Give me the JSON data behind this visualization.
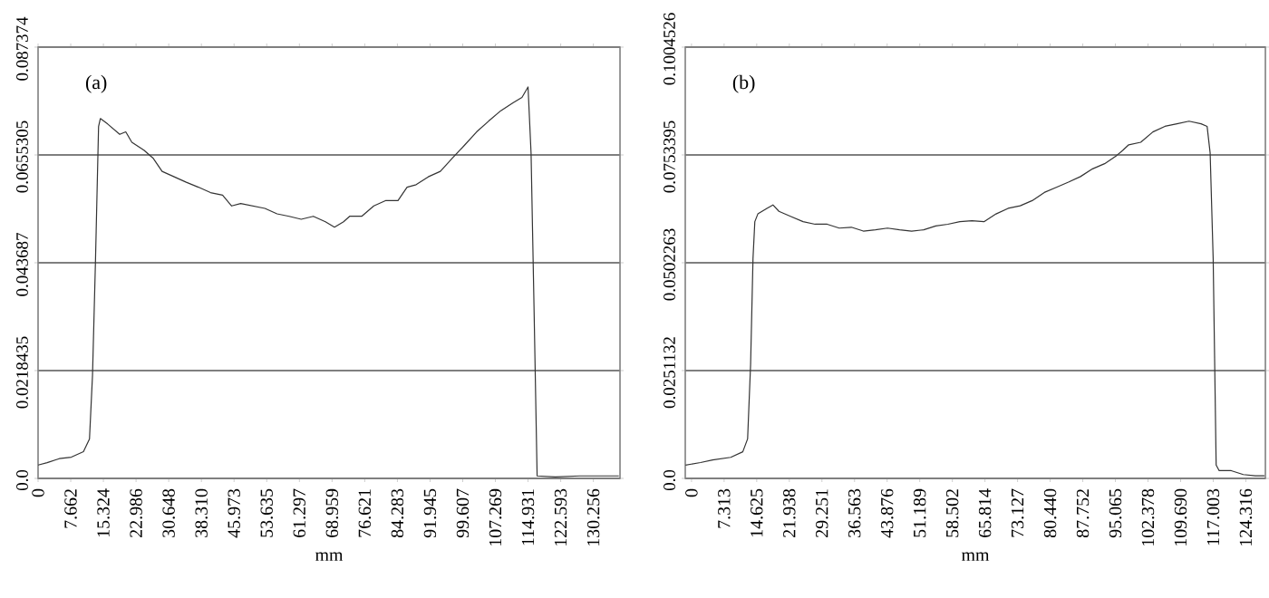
{
  "chart_data": [
    {
      "type": "line",
      "annotations": [
        "(a)"
      ],
      "xlabel": "mm",
      "grid": "y",
      "color": "#333333",
      "xlim": [
        0,
        136.5
      ],
      "ylim": [
        0,
        0.087374
      ],
      "xticks": [
        0,
        7.662,
        15.324,
        22.986,
        30.648,
        {
          "value": 38.31,
          "label": "38.310"
        },
        45.973,
        53.635,
        61.297,
        68.959,
        76.621,
        84.283,
        91.945,
        99.607,
        107.269,
        114.931,
        122.593,
        130.256
      ],
      "yticks": [
        {
          "value": 0,
          "label": "0.0"
        },
        0.0218435,
        0.043687,
        0.0655305,
        0.087374
      ],
      "x": [
        0,
        2.13,
        4.97,
        7.8,
        10.64,
        12.06,
        12.77,
        13.48,
        14.19,
        14.61,
        16.32,
        19.15,
        20.57,
        21.99,
        24.83,
        26.96,
        29.09,
        31.92,
        34.76,
        37.6,
        40.44,
        43.28,
        45.4,
        47.53,
        50.37,
        53.21,
        56.05,
        58.89,
        61.72,
        64.56,
        67.4,
        69.53,
        71.66,
        73.08,
        75.91,
        78.75,
        81.59,
        84.42,
        86.55,
        88.68,
        91.52,
        94.36,
        97.2,
        100.03,
        102.87,
        105.71,
        108.55,
        111.39,
        113.51,
        114.93,
        115.64,
        116.35,
        117.06,
        121.32,
        126.99,
        132.67,
        136.22
      ],
      "values": [
        0.0027,
        0.0032,
        0.004,
        0.0043,
        0.0054,
        0.008,
        0.0209,
        0.0445,
        0.0713,
        0.0729,
        0.0718,
        0.0697,
        0.0702,
        0.0681,
        0.0665,
        0.0649,
        0.0622,
        0.0611,
        0.06,
        0.059,
        0.0579,
        0.0574,
        0.0552,
        0.0557,
        0.0552,
        0.0547,
        0.0536,
        0.0531,
        0.0525,
        0.0531,
        0.052,
        0.0509,
        0.052,
        0.0531,
        0.0531,
        0.0552,
        0.0563,
        0.0563,
        0.059,
        0.0595,
        0.0611,
        0.0622,
        0.0649,
        0.0675,
        0.0702,
        0.0724,
        0.0745,
        0.0761,
        0.0772,
        0.0793,
        0.0659,
        0.0338,
        0.0005,
        0.0003,
        0.0005,
        0.0005,
        0.0005
      ]
    },
    {
      "type": "line",
      "annotations": [
        "(b)"
      ],
      "xlabel": "mm",
      "grid": "y",
      "color": "#333333",
      "xlim": [
        -1.4,
        128.7
      ],
      "ylim": [
        0,
        0.1004526
      ],
      "xticks": [
        0,
        7.313,
        14.625,
        21.938,
        29.251,
        36.563,
        43.876,
        51.189,
        58.502,
        65.814,
        73.127,
        {
          "value": 80.44,
          "label": "80.440"
        },
        87.752,
        95.065,
        102.378,
        {
          "value": 109.69,
          "label": "109.690"
        },
        117.003,
        124.316
      ],
      "yticks": [
        {
          "value": 0,
          "label": "0.0"
        },
        0.0251132,
        0.0502263,
        0.0753395,
        0.1004526
      ],
      "x": [
        -1.35,
        2.03,
        4.73,
        8.79,
        11.5,
        12.58,
        13.25,
        13.79,
        14.2,
        14.88,
        16.91,
        18.26,
        19.61,
        22.31,
        25.02,
        27.72,
        30.43,
        33.13,
        35.84,
        38.54,
        41.25,
        43.95,
        46.66,
        49.36,
        52.07,
        54.77,
        57.48,
        60.18,
        62.89,
        65.59,
        68.3,
        71.0,
        73.71,
        76.41,
        79.12,
        81.82,
        84.53,
        87.23,
        89.94,
        92.64,
        95.34,
        96.7,
        98.05,
        100.75,
        103.46,
        106.16,
        108.87,
        111.57,
        114.28,
        115.63,
        116.31,
        116.99,
        117.66,
        118.34,
        121.04,
        123.74,
        126.45,
        128.48
      ],
      "values": [
        0.0031,
        0.0037,
        0.0043,
        0.0049,
        0.0062,
        0.0092,
        0.0265,
        0.0512,
        0.0598,
        0.0616,
        0.0629,
        0.0637,
        0.0622,
        0.061,
        0.0598,
        0.0592,
        0.0592,
        0.0583,
        0.0585,
        0.0576,
        0.0579,
        0.0583,
        0.0579,
        0.0576,
        0.0579,
        0.0588,
        0.0592,
        0.0598,
        0.06,
        0.0598,
        0.0616,
        0.0629,
        0.0635,
        0.0647,
        0.0666,
        0.0678,
        0.069,
        0.0703,
        0.0721,
        0.0733,
        0.0752,
        0.0764,
        0.0777,
        0.0783,
        0.0807,
        0.082,
        0.0826,
        0.0832,
        0.0826,
        0.082,
        0.0758,
        0.0512,
        0.0031,
        0.0018,
        0.0018,
        0.0009,
        0.0006,
        0.0006
      ]
    }
  ]
}
